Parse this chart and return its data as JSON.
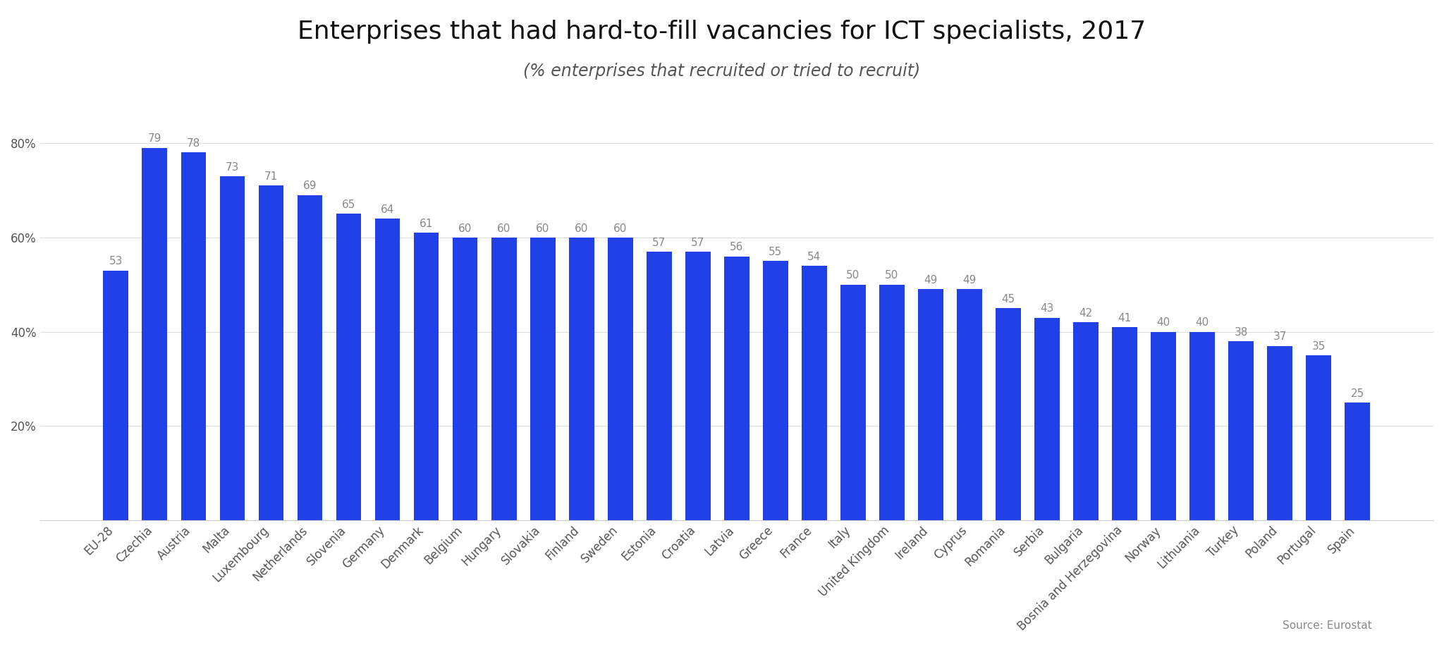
{
  "title": "Enterprises that had hard-to-fill vacancies for ICT specialists, 2017",
  "subtitle": "(% enterprises that recruited or tried to recruit)",
  "source": "Source: Eurostat",
  "categories": [
    "EU-28",
    "Czechia",
    "Austria",
    "Malta",
    "Luxembourg",
    "Netherlands",
    "Slovenia",
    "Germany",
    "Denmark",
    "Belgium",
    "Hungary",
    "Slovakia",
    "Finland",
    "Sweden",
    "Estonia",
    "Croatia",
    "Latvia",
    "Greece",
    "France",
    "Italy",
    "United Kingdom",
    "Ireland",
    "Cyprus",
    "Romania",
    "Serbia",
    "Bulgaria",
    "Bosnia and Herzegovina",
    "Norway",
    "Lithuania",
    "Turkey",
    "Poland",
    "Portugal",
    "Spain"
  ],
  "values": [
    53,
    79,
    78,
    73,
    71,
    69,
    65,
    64,
    61,
    60,
    60,
    60,
    60,
    60,
    57,
    57,
    56,
    55,
    54,
    50,
    50,
    49,
    49,
    45,
    43,
    42,
    41,
    40,
    40,
    38,
    37,
    35,
    25
  ],
  "bar_color": "#2040e8",
  "label_color": "#888888",
  "background_color": "#ffffff",
  "title_fontsize": 26,
  "subtitle_fontsize": 17,
  "label_fontsize": 11,
  "tick_label_fontsize": 12,
  "ytick_labels": [
    "20%",
    "40%",
    "60%",
    "80%"
  ],
  "ytick_values": [
    20,
    40,
    60,
    80
  ],
  "ylim": [
    0,
    90
  ]
}
